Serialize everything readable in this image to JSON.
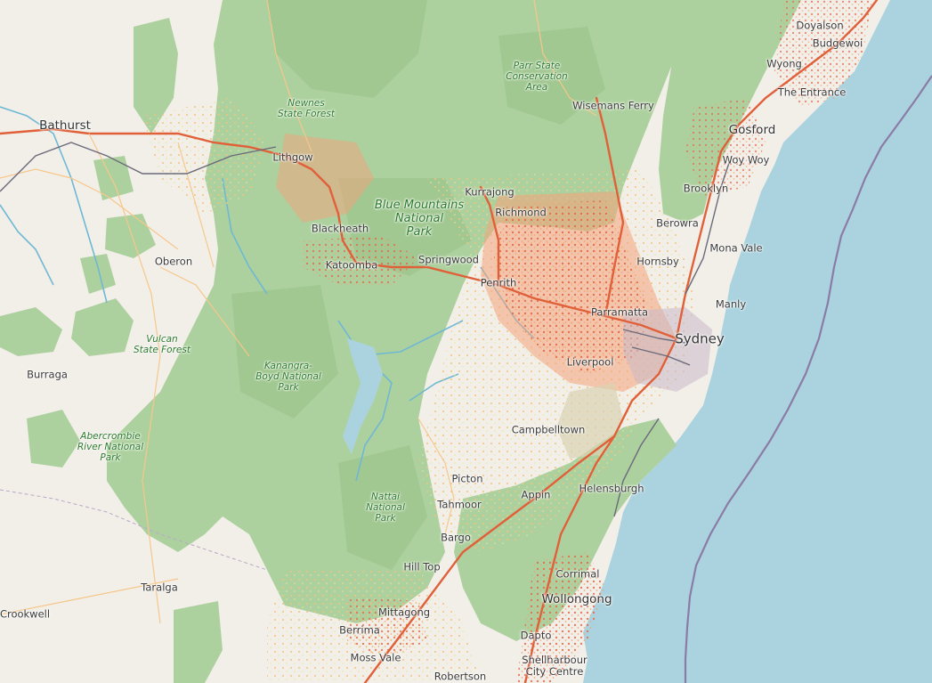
{
  "colors": {
    "land": "#f2efe9",
    "park": "#add19e",
    "park_dark": "#9fc68f",
    "water": "#aad3df",
    "urban": "#f4a27a",
    "road_major": "#e0603a",
    "road_minor": "#f6c78b",
    "rail": "#6a6a7a",
    "boundary": "#8c7ba6",
    "place_text": "#3a3a3a",
    "park_text": "#2c7a2c"
  },
  "places": [
    {
      "name": "Bathurst",
      "size": "big"
    },
    {
      "name": "Oberon",
      "size": "normal"
    },
    {
      "name": "Burraga",
      "size": "normal"
    },
    {
      "name": "Taralga",
      "size": "normal"
    },
    {
      "name": "Crookwell",
      "size": "normal"
    },
    {
      "name": "Lithgow",
      "size": "normal"
    },
    {
      "name": "Blackheath",
      "size": "normal"
    },
    {
      "name": "Katoomba",
      "size": "normal"
    },
    {
      "name": "Springwood",
      "size": "normal"
    },
    {
      "name": "Kurrajong",
      "size": "normal"
    },
    {
      "name": "Richmond",
      "size": "normal"
    },
    {
      "name": "Wisemans Ferry",
      "size": "normal"
    },
    {
      "name": "Penrith",
      "size": "normal"
    },
    {
      "name": "Parramatta",
      "size": "normal"
    },
    {
      "name": "Sydney",
      "size": "major"
    },
    {
      "name": "Liverpool",
      "size": "normal"
    },
    {
      "name": "Campbelltown",
      "size": "normal"
    },
    {
      "name": "Picton",
      "size": "normal"
    },
    {
      "name": "Tahmoor",
      "size": "normal"
    },
    {
      "name": "Appin",
      "size": "normal"
    },
    {
      "name": "Bargo",
      "size": "normal"
    },
    {
      "name": "Hill Top",
      "size": "normal"
    },
    {
      "name": "Mittagong",
      "size": "normal"
    },
    {
      "name": "Berrima",
      "size": "normal"
    },
    {
      "name": "Moss Vale",
      "size": "normal"
    },
    {
      "name": "Robertson",
      "size": "normal"
    },
    {
      "name": "Helensburgh",
      "size": "normal"
    },
    {
      "name": "Corrimal",
      "size": "normal"
    },
    {
      "name": "Wollongong",
      "size": "big"
    },
    {
      "name": "Dapto",
      "size": "normal"
    },
    {
      "name": "Shellharbour City Centre",
      "size": "normal"
    },
    {
      "name": "Hornsby",
      "size": "normal"
    },
    {
      "name": "Berowra",
      "size": "normal"
    },
    {
      "name": "Brooklyn",
      "size": "normal"
    },
    {
      "name": "Mona Vale",
      "size": "normal"
    },
    {
      "name": "Manly",
      "size": "normal"
    },
    {
      "name": "Gosford",
      "size": "big"
    },
    {
      "name": "Woy Woy",
      "size": "normal"
    },
    {
      "name": "Wyong",
      "size": "normal"
    },
    {
      "name": "The Entrance",
      "size": "normal"
    },
    {
      "name": "Doyalson",
      "size": "normal"
    },
    {
      "name": "Budgewoi",
      "size": "normal"
    }
  ],
  "parks": [
    {
      "name": "Blue Mountains National Park",
      "lines": [
        "Blue Mountains",
        "National",
        "Park"
      ]
    },
    {
      "name": "Newnes State Forest",
      "lines": [
        "Newnes",
        "State Forest"
      ]
    },
    {
      "name": "Parr State Conservation Area",
      "lines": [
        "Parr State",
        "Conservation",
        "Area"
      ]
    },
    {
      "name": "Vulcan State Forest",
      "lines": [
        "Vulcan",
        "State Forest"
      ]
    },
    {
      "name": "Kanangra-Boyd National Park",
      "lines": [
        "Kanangra-",
        "Boyd National",
        "Park"
      ]
    },
    {
      "name": "Abercrombie River National Park",
      "lines": [
        "Abercrombie",
        "River National",
        "Park"
      ]
    },
    {
      "name": "Nattai National Park",
      "lines": [
        "Nattai",
        "National",
        "Park"
      ]
    }
  ]
}
